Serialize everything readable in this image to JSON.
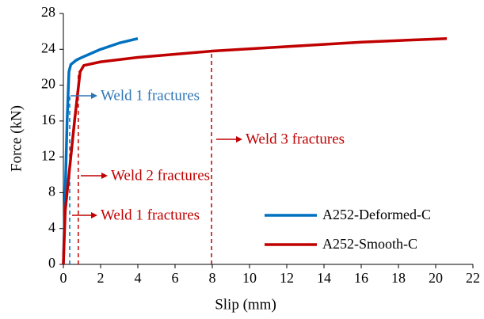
{
  "chart_data": {
    "type": "line",
    "x_label": "Slip (mm)",
    "y_label": "Force (kN)",
    "xlim": [
      0,
      22
    ],
    "xticks": [
      0,
      2,
      4,
      6,
      8,
      10,
      12,
      14,
      16,
      18,
      20,
      22
    ],
    "ylim": [
      0,
      28
    ],
    "yticks": [
      0,
      4,
      8,
      12,
      16,
      20,
      24,
      28
    ],
    "grid": false,
    "legend": "lower right",
    "series": [
      {
        "name": "A252-Deformed-C",
        "color": "#0070c0",
        "x": [
          0,
          0.1,
          0.2,
          0.3,
          0.4,
          0.7,
          1,
          2,
          3,
          4
        ],
        "values": [
          0,
          8,
          16,
          21.5,
          22.3,
          22.8,
          23.1,
          24,
          24.7,
          25.2
        ]
      },
      {
        "name": "A252-Smooth-C",
        "color": "#c00000",
        "x": [
          0,
          0.1,
          0.3,
          0.6,
          0.9,
          1.1,
          2,
          4,
          8,
          12,
          16,
          20.6
        ],
        "values": [
          0,
          6,
          10,
          16,
          21.5,
          22.2,
          22.6,
          23.1,
          23.8,
          24.3,
          24.8,
          25.2
        ]
      }
    ],
    "fracture_lines": [
      {
        "x": 0.34,
        "y": 18.8,
        "color": "#0070c0"
      },
      {
        "x": 0.8,
        "y": 21.5,
        "color": "#c00000"
      },
      {
        "x": 7.96,
        "y": 23.8,
        "color": "#c00000"
      }
    ],
    "annotations": [
      {
        "text": "Weld 1 fractures",
        "color": "#2e75b6"
      },
      {
        "text": "Weld 3 fractures",
        "color": "#c00000"
      },
      {
        "text": "Weld 2 fractures",
        "color": "#c00000"
      },
      {
        "text": "Weld 1 fractures",
        "color": "#c00000"
      }
    ]
  }
}
